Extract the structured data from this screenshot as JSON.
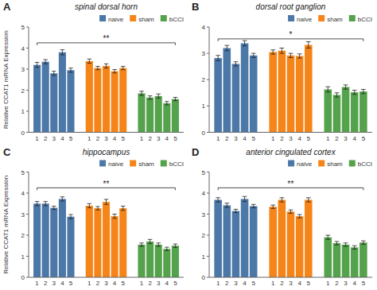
{
  "chart_data": [
    {
      "type": "bar",
      "label": "A",
      "title": "spinal dorsal horn",
      "ylabel": "Relative CCAT1 mRNA Expression",
      "categories": [
        "1",
        "2",
        "3",
        "4",
        "5"
      ],
      "series": [
        {
          "name": "naive",
          "values": [
            3.2,
            3.35,
            2.8,
            3.8,
            2.95
          ],
          "errors": [
            0.12,
            0.1,
            0.1,
            0.12,
            0.1
          ]
        },
        {
          "name": "sham",
          "values": [
            3.38,
            3.05,
            3.15,
            2.9,
            3.05
          ],
          "errors": [
            0.1,
            0.08,
            0.1,
            0.08,
            0.08
          ]
        },
        {
          "name": "bCCI",
          "values": [
            1.85,
            1.65,
            1.72,
            1.38,
            1.58
          ],
          "errors": [
            0.1,
            0.08,
            0.1,
            0.08,
            0.08
          ]
        }
      ],
      "ylim": [
        0,
        5
      ],
      "yticks": [
        0,
        1,
        2,
        3,
        4,
        5
      ],
      "annotations": [
        {
          "text": "**",
          "y": 4.25
        }
      ],
      "legend": "upper right",
      "grid": false
    },
    {
      "type": "bar",
      "label": "B",
      "title": "dorsal root ganglion",
      "categories": [
        "1",
        "2",
        "3",
        "4",
        "5"
      ],
      "series": [
        {
          "name": "naive",
          "values": [
            2.82,
            3.2,
            2.6,
            3.38,
            2.92
          ],
          "errors": [
            0.1,
            0.1,
            0.08,
            0.1,
            0.08
          ]
        },
        {
          "name": "sham",
          "values": [
            3.05,
            3.1,
            2.92,
            2.9,
            3.32
          ],
          "errors": [
            0.08,
            0.1,
            0.08,
            0.08,
            0.12
          ]
        },
        {
          "name": "bCCI",
          "values": [
            1.63,
            1.42,
            1.72,
            1.52,
            1.55
          ],
          "errors": [
            0.1,
            0.08,
            0.08,
            0.08,
            0.08
          ]
        }
      ],
      "ylim": [
        0,
        4
      ],
      "yticks": [
        0,
        1,
        2,
        3,
        4
      ],
      "annotations": [
        {
          "text": "*",
          "y": 3.55
        }
      ],
      "legend": "upper right",
      "grid": false
    },
    {
      "type": "bar",
      "label": "C",
      "title": "hippocampus",
      "ylabel": "Relative CCAT1 mRNA Expression",
      "categories": [
        "1",
        "2",
        "3",
        "4",
        "5"
      ],
      "series": [
        {
          "name": "naive",
          "values": [
            3.5,
            3.5,
            3.3,
            3.72,
            2.88
          ],
          "errors": [
            0.1,
            0.1,
            0.08,
            0.1,
            0.1
          ]
        },
        {
          "name": "sham",
          "values": [
            3.4,
            3.28,
            3.58,
            2.9,
            3.28
          ],
          "errors": [
            0.1,
            0.08,
            0.12,
            0.1,
            0.1
          ]
        },
        {
          "name": "bCCI",
          "values": [
            1.55,
            1.7,
            1.55,
            1.35,
            1.5
          ],
          "errors": [
            0.08,
            0.1,
            0.08,
            0.08,
            0.08
          ]
        }
      ],
      "ylim": [
        0,
        5
      ],
      "yticks": [
        0,
        1,
        2,
        3,
        4,
        5
      ],
      "annotations": [
        {
          "text": "**",
          "y": 4.25
        }
      ],
      "legend": "upper right",
      "grid": false
    },
    {
      "type": "bar",
      "label": "D",
      "title": "anterior cingulated cortex",
      "categories": [
        "1",
        "2",
        "3",
        "4",
        "5"
      ],
      "series": [
        {
          "name": "naive",
          "values": [
            3.68,
            3.42,
            3.15,
            3.72,
            3.38
          ],
          "errors": [
            0.1,
            0.1,
            0.08,
            0.12,
            0.08
          ]
        },
        {
          "name": "sham",
          "values": [
            3.35,
            3.68,
            3.12,
            2.9,
            3.68
          ],
          "errors": [
            0.08,
            0.1,
            0.08,
            0.08,
            0.1
          ]
        },
        {
          "name": "bCCI",
          "values": [
            1.9,
            1.62,
            1.55,
            1.42,
            1.65
          ],
          "errors": [
            0.1,
            0.08,
            0.08,
            0.08,
            0.08
          ]
        }
      ],
      "ylim": [
        0,
        5
      ],
      "yticks": [
        0,
        1,
        2,
        3,
        4,
        5
      ],
      "annotations": [
        {
          "text": "**",
          "y": 4.25
        }
      ],
      "legend": "upper right",
      "grid": false
    }
  ]
}
